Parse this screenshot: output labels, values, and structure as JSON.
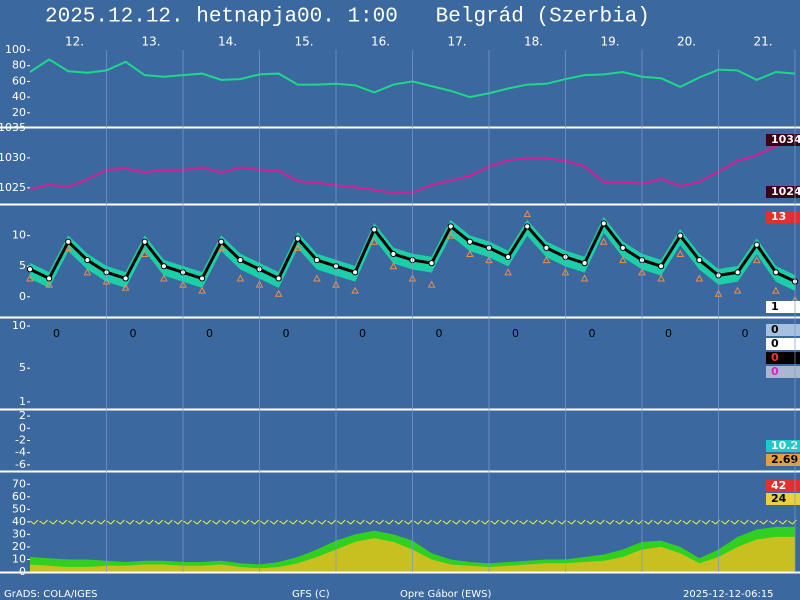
{
  "header": {
    "title": "2025.12.12. hetnapja00. 1:00   Belgrád (Szerbia)"
  },
  "chart_data": {
    "type": "meteogram",
    "x": [
      11.5,
      11.75,
      12,
      12.25,
      12.5,
      12.75,
      13,
      13.25,
      13.5,
      13.75,
      14,
      14.25,
      14.5,
      14.75,
      15,
      15.25,
      15.5,
      15.75,
      16,
      16.25,
      16.5,
      16.75,
      17,
      17.25,
      17.5,
      17.75,
      18,
      18.25,
      18.5,
      18.75,
      19,
      19.25,
      19.5,
      19.75,
      20,
      20.25,
      20.5,
      20.75,
      21,
      21.25,
      21.5
    ],
    "xlim": [
      11.5,
      21.5
    ],
    "xticks": [
      {
        "value": 12.5,
        "label": "12."
      },
      {
        "value": 13.5,
        "label": "13."
      },
      {
        "value": 14.5,
        "label": "14."
      },
      {
        "value": 15.5,
        "label": "15."
      },
      {
        "value": 16.5,
        "label": "16."
      },
      {
        "value": 17.5,
        "label": "17."
      },
      {
        "value": 18.5,
        "label": "18."
      },
      {
        "value": 19.5,
        "label": "19."
      },
      {
        "value": 20.5,
        "label": "20."
      },
      {
        "value": 21.5,
        "label": "21."
      }
    ],
    "grid": true,
    "panels": [
      {
        "ylim": [
          2,
          100
        ],
        "yticks": [
          20,
          40,
          60,
          80,
          100
        ],
        "series": [
          {
            "kind": "line",
            "color": "#1ed88a",
            "values": [
              72,
              88,
              73,
              71,
              74,
              85,
              68,
              66,
              68,
              70,
              62,
              63,
              69,
              70,
              56,
              56,
              57,
              55,
              46,
              56,
              60,
              54,
              48,
              40,
              45,
              51,
              56,
              57,
              63,
              68,
              69,
              72,
              66,
              64,
              53,
              65,
              75,
              74,
              62,
              72,
              70
            ]
          }
        ],
        "side_labels": []
      },
      {
        "ylim": [
          1022.3,
          1035
        ],
        "yticks": [
          1025,
          1030,
          1035
        ],
        "series": [
          {
            "kind": "line",
            "color": "#d81e96",
            "values": [
              1024.8,
              1025.5,
              1025.2,
              1026.4,
              1028,
              1028.2,
              1027.6,
              1028,
              1028,
              1028.4,
              1027.6,
              1028.4,
              1028,
              1027.9,
              1026.1,
              1025.9,
              1025.4,
              1025.1,
              1024.7,
              1024.1,
              1024.2,
              1025.5,
              1026.2,
              1027,
              1028.6,
              1029.6,
              1030,
              1030,
              1029.5,
              1028.6,
              1026,
              1026,
              1025.7,
              1026.5,
              1025.3,
              1026,
              1027.7,
              1029.5,
              1030.5,
              1032,
              1033.5
            ]
          }
        ],
        "side_labels": [
          {
            "value": 1034,
            "bg": "#3a0018",
            "fg": "#ffffff"
          },
          {
            "value": 1024,
            "bg": "#3a0018",
            "fg": "#ffffff"
          }
        ]
      },
      {
        "ylim": [
          -3.3,
          15
        ],
        "yticks": [
          0,
          5,
          10
        ],
        "series": [
          {
            "kind": "band",
            "color": "#1ccfa8",
            "upper": [
              5.5,
              4,
              10,
              7,
              5,
              4,
              10,
              6,
              5,
              4,
              10,
              7,
              5.5,
              4,
              10.5,
              7,
              6,
              5,
              12,
              8,
              7,
              6.5,
              12.5,
              10,
              9,
              7.5,
              12.5,
              9,
              7.5,
              6.5,
              13,
              9,
              7,
              6,
              11,
              7,
              4.5,
              5,
              9.5,
              5,
              3.5
            ],
            "lower": [
              3,
              1.5,
              7.5,
              4.5,
              2.5,
              1.5,
              7.5,
              3.5,
              2.5,
              1.5,
              7.5,
              4.5,
              3,
              1.5,
              8,
              4.5,
              3.5,
              2.5,
              9.5,
              5.5,
              4.5,
              4,
              10,
              7.5,
              6.5,
              5,
              10,
              6.5,
              5,
              4,
              10.5,
              6.5,
              4.5,
              3.5,
              8.5,
              4.5,
              2,
              2.5,
              7,
              2.5,
              1
            ]
          },
          {
            "kind": "markers",
            "marker": "triangle",
            "color": "#e89048",
            "values": [
              3,
              2,
              8,
              4,
              2.5,
              1.5,
              7,
              3,
              2,
              1,
              8,
              3,
              2,
              0.5,
              8,
              3,
              2,
              1,
              9,
              5,
              3,
              2,
              10,
              7,
              6,
              4,
              13.5,
              6,
              4,
              3,
              9,
              6,
              4,
              3,
              7,
              3,
              0.5,
              1,
              6,
              1,
              -0.5
            ]
          },
          {
            "kind": "line",
            "marker": "circle",
            "color": "#000000",
            "values": [
              4.5,
              3,
              9,
              6,
              4,
              3,
              9,
              5,
              4,
              3,
              9,
              6,
              4.5,
              3,
              9.5,
              6,
              5,
              4,
              11,
              7,
              6,
              5.5,
              11.5,
              9,
              8,
              6.5,
              11.5,
              8,
              6.5,
              5.5,
              12,
              8,
              6,
              5,
              10,
              6,
              3.5,
              4,
              8.5,
              4,
              2.5
            ]
          }
        ],
        "side_labels": [
          {
            "value": 13,
            "bg": "#e03030",
            "fg": "#ffffff"
          },
          {
            "value": 1,
            "bg": "#ffffff",
            "fg": "#000000"
          }
        ]
      },
      {
        "ylim": [
          0.16,
          10.96
        ],
        "yticks": [
          1,
          5,
          10
        ],
        "series": [
          {
            "kind": "daily",
            "color": "#000000",
            "values": [
              0,
              0,
              0,
              0,
              0,
              0,
              0,
              0,
              0,
              0
            ]
          }
        ],
        "side_labels": [
          {
            "value": 0,
            "bg": "#a8c0e0",
            "fg": "#000000"
          },
          {
            "value": 0,
            "bg": "#ffffff",
            "fg": "#000000"
          },
          {
            "value": 0,
            "bg": "#000000",
            "fg": "#ff3030"
          },
          {
            "value": 0,
            "bg": "#a8b8d0",
            "fg": "#e020c0"
          }
        ]
      },
      {
        "ylim": [
          -7,
          3
        ],
        "yticks": [
          2,
          0,
          -2,
          -4,
          -6
        ],
        "series": [],
        "side_labels": [
          {
            "value": 10.2,
            "bg": "#20c8c8",
            "fg": "#ffffff"
          },
          {
            "value": 2.69,
            "bg": "#e0a040",
            "fg": "#000000"
          }
        ]
      },
      {
        "ylim": [
          0,
          79
        ],
        "yticks": [
          0,
          10,
          20,
          30,
          40,
          50,
          60,
          70
        ],
        "series": [
          {
            "kind": "area",
            "color": "#30d020",
            "values": [
              12,
              11,
              10,
              10,
              9,
              8,
              9,
              9,
              8,
              8,
              9,
              7,
              6,
              8,
              12,
              18,
              25,
              30,
              33,
              30,
              25,
              15,
              10,
              8,
              7,
              8,
              9,
              10,
              10,
              12,
              14,
              18,
              24,
              25,
              20,
              11,
              18,
              28,
              34,
              36,
              36
            ]
          },
          {
            "kind": "area",
            "color": "#c8c020",
            "values": [
              6,
              5,
              4,
              4,
              5,
              5,
              6,
              6,
              5,
              5,
              6,
              4,
              3,
              4,
              7,
              12,
              18,
              24,
              27,
              24,
              18,
              10,
              6,
              5,
              4,
              5,
              6,
              7,
              7,
              8,
              9,
              12,
              18,
              20,
              15,
              7,
              12,
              20,
              26,
              28,
              28
            ]
          }
        ],
        "side_labels": [
          {
            "value": 42,
            "bg": "#e03030",
            "fg": "#ffffff"
          },
          {
            "value": 24,
            "bg": "#e8d040",
            "fg": "#000000"
          }
        ]
      }
    ]
  },
  "footer": {
    "left": "GrADS: COLA/IGES",
    "center_left": "GFS (C)",
    "center_right": "Opre Gábor (EWS)",
    "right": "2025-12-12-06:15"
  }
}
